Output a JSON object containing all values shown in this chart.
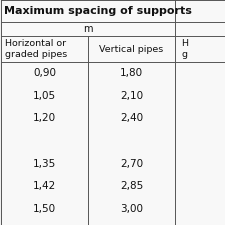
{
  "title": "Maximum spacing of supports",
  "unit": "m",
  "col1_header_line1": "Horizontal or",
  "col1_header_line2": "graded pipes",
  "col2_header": "Vertical pipes",
  "col3_header_partial_line1": "H",
  "col3_header_partial_line2": "g",
  "col1_values": [
    "0,90",
    "1,05",
    "1,20",
    "",
    "1,35",
    "1,42",
    "1,50"
  ],
  "col2_values": [
    "1,80",
    "2,10",
    "2,40",
    "",
    "2,70",
    "2,85",
    "3,00"
  ],
  "background_color": "#f0f0f0",
  "line_color": "#555555",
  "text_color": "#111111",
  "title_fontsize": 8.0,
  "header_fontsize": 6.8,
  "cell_fontsize": 7.5,
  "unit_fontsize": 7.0
}
